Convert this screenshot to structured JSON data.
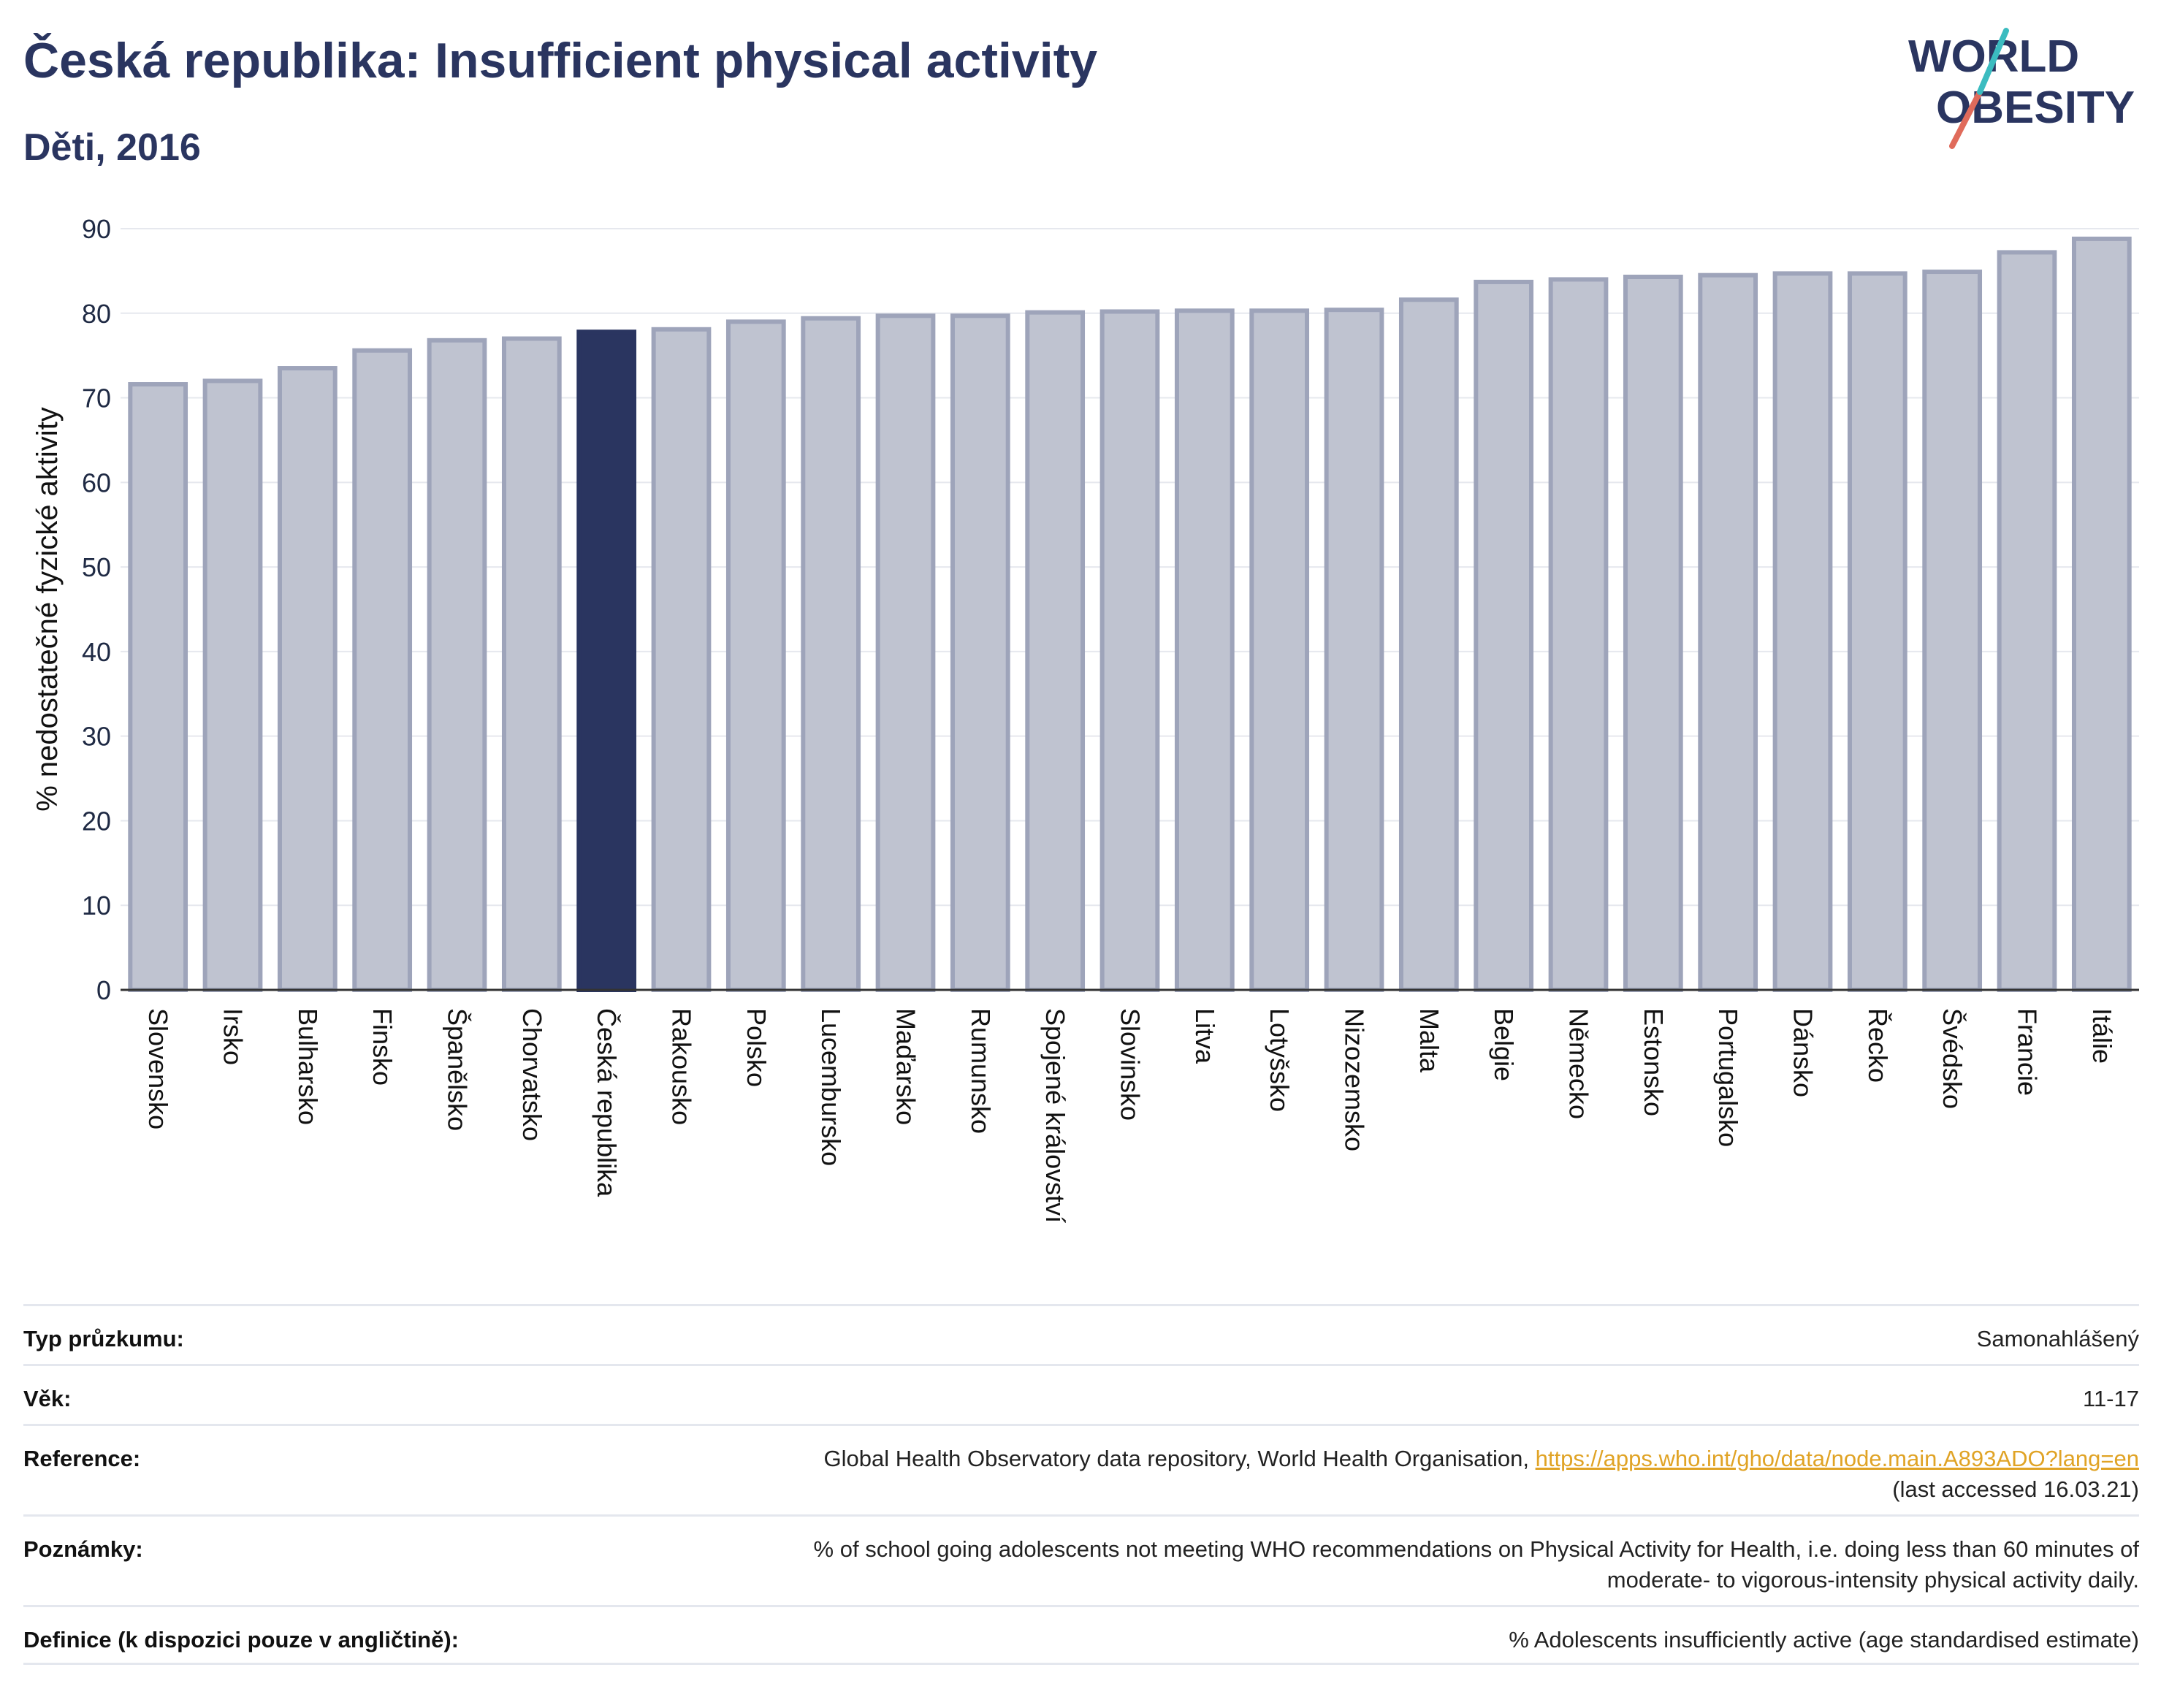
{
  "header": {
    "title": "Česká republika: Insufficient physical activity",
    "subtitle": "Děti, 2016"
  },
  "logo": {
    "line1": "WORLD",
    "line2": "OBESITY"
  },
  "colors": {
    "highlight_bar": "#2a3560",
    "other_bar_fill": "#bfc3d0",
    "other_bar_stroke": "#9ea4ba",
    "grid": "#e6e8ee",
    "text": "#1f2a44",
    "link": "#e0a325"
  },
  "chart_data": {
    "type": "bar",
    "title": "Česká republika: Insufficient physical activity",
    "subtitle": "Děti, 2016",
    "ylabel": "% nedostatečné fyzické aktivity",
    "xlabel": "",
    "ylim": [
      0,
      90
    ],
    "yticks": [
      0,
      10,
      20,
      30,
      40,
      50,
      60,
      70,
      80,
      90
    ],
    "grid": true,
    "highlight": "Česká republika",
    "categories": [
      "Slovensko",
      "Irsko",
      "Bulharsko",
      "Finsko",
      "Španělsko",
      "Chorvatsko",
      "Česká republika",
      "Rakousko",
      "Polsko",
      "Lucembursko",
      "Maďarsko",
      "Rumunsko",
      "Spojené království",
      "Slovinsko",
      "Litva",
      "Lotyšsko",
      "Nizozemsko",
      "Malta",
      "Belgie",
      "Německo",
      "Estonsko",
      "Portugalsko",
      "Dánsko",
      "Řecko",
      "Švédsko",
      "Francie",
      "Itálie"
    ],
    "values": [
      71.6,
      72.0,
      73.5,
      75.6,
      76.8,
      77.0,
      77.8,
      78.1,
      79.0,
      79.4,
      79.7,
      79.7,
      80.1,
      80.2,
      80.3,
      80.3,
      80.4,
      81.6,
      83.7,
      84.0,
      84.3,
      84.5,
      84.7,
      84.7,
      84.9,
      87.2,
      88.8
    ]
  },
  "meta": {
    "rows": [
      {
        "label": "Typ průzkumu:",
        "value": "Samonahlášený"
      },
      {
        "label": "Věk:",
        "value": "11-17"
      },
      {
        "label": "Reference:",
        "value": "Global Health Observatory data repository, World Health Organisation, ",
        "link": "https://apps.who.int/gho/data/node.main.A893ADO?lang=en",
        "value2": "(last accessed 16.03.21)"
      },
      {
        "label": "Poznámky:",
        "value": "% of school going adolescents not meeting WHO recommendations on Physical Activity for Health, i.e. doing less than 60 minutes of",
        "value2": "moderate- to vigorous-intensity physical activity daily."
      },
      {
        "label": "Definice (k dispozici pouze v angličtině):",
        "value": "% Adolescents insufficiently active (age standardised estimate)"
      }
    ]
  }
}
